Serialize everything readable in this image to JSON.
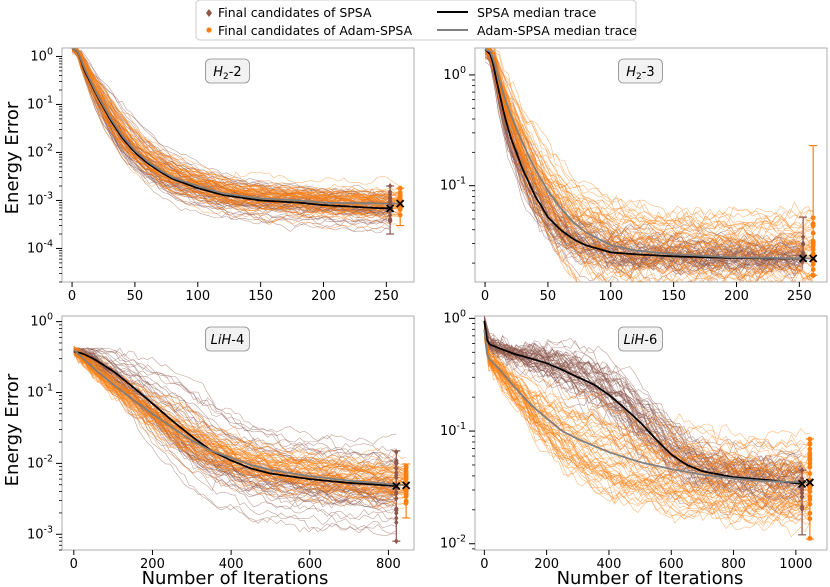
{
  "legend": {
    "entries": [
      {
        "label": "Final candidates of SPSA",
        "kind": "marker",
        "color": "#8c564b"
      },
      {
        "label": "Final candidates of Adam-SPSA",
        "kind": "marker",
        "color": "#ff7f0e"
      },
      {
        "label": "SPSA median trace",
        "kind": "line",
        "color": "#000000"
      },
      {
        "label": "Adam-SPSA median trace",
        "kind": "line",
        "color": "#7f7f7f"
      }
    ]
  },
  "ylabel": "Energy Error",
  "xlabel": "Number of Iterations",
  "colors": {
    "spsa": "#8c564b",
    "adam": "#ff7f0e",
    "spsa_median": "#000000",
    "adam_median": "#7f7f7f"
  },
  "chart_data": [
    {
      "type": "line",
      "title": "H2-2",
      "title_main": "H",
      "title_sub": "2",
      "title_suffix": "-2",
      "yscale": "log",
      "xlim": [
        -8,
        272
      ],
      "ylim": [
        2e-05,
        1.5
      ],
      "xticks": [
        0,
        50,
        100,
        150,
        200,
        250
      ],
      "xtick_labels": [
        "0",
        "50",
        "100",
        "150",
        "200",
        "250"
      ],
      "yticks": [
        0.0001,
        0.001,
        0.01,
        0.1,
        1
      ],
      "ytick_labels": [
        "10^-4",
        "10^-3",
        "10^-2",
        "10^-1",
        "10^0"
      ],
      "series": [
        {
          "name": "SPSA median trace",
          "x": [
            0,
            5,
            10,
            20,
            30,
            40,
            50,
            60,
            70,
            80,
            100,
            120,
            150,
            180,
            200,
            220,
            240,
            255
          ],
          "values": [
            1.5,
            1.2,
            0.5,
            0.15,
            0.05,
            0.02,
            0.01,
            0.006,
            0.004,
            0.0028,
            0.0018,
            0.0013,
            0.001,
            0.0009,
            0.0008,
            0.00075,
            0.0007,
            0.00068
          ]
        },
        {
          "name": "Adam-SPSA median trace",
          "x": [
            0,
            5,
            10,
            20,
            30,
            40,
            50,
            60,
            70,
            80,
            100,
            120,
            150,
            180,
            200,
            220,
            240,
            260
          ],
          "values": [
            1.5,
            1.2,
            0.55,
            0.16,
            0.055,
            0.022,
            0.011,
            0.0065,
            0.0043,
            0.003,
            0.002,
            0.0014,
            0.0011,
            0.001,
            0.0009,
            0.00088,
            0.00087,
            0.00086
          ]
        }
      ],
      "final_candidates": {
        "spsa": {
          "x": 253,
          "min": 0.0002,
          "max": 0.002,
          "median": 0.00068
        },
        "adam": {
          "x": 261,
          "min": 0.0003,
          "max": 0.0018,
          "median": 0.00086
        }
      }
    },
    {
      "type": "line",
      "title": "H2-3",
      "title_main": "H",
      "title_sub": "2",
      "title_suffix": "-3",
      "yscale": "log",
      "xlim": [
        -8,
        272
      ],
      "ylim": [
        0.0135,
        1.75
      ],
      "xticks": [
        0,
        50,
        100,
        150,
        200,
        250
      ],
      "xtick_labels": [
        "0",
        "50",
        "100",
        "150",
        "200",
        "250"
      ],
      "yticks": [
        0.1,
        1
      ],
      "ytick_labels": [
        "10^-1",
        "10^0"
      ],
      "series": [
        {
          "name": "SPSA median trace",
          "x": [
            0,
            5,
            10,
            15,
            20,
            30,
            40,
            50,
            60,
            70,
            80,
            100,
            120,
            150,
            200,
            250
          ],
          "values": [
            1.7,
            1.5,
            0.8,
            0.45,
            0.28,
            0.14,
            0.08,
            0.052,
            0.04,
            0.033,
            0.029,
            0.025,
            0.024,
            0.023,
            0.0222,
            0.022
          ]
        },
        {
          "name": "Adam-SPSA median trace",
          "x": [
            0,
            5,
            10,
            15,
            20,
            30,
            40,
            50,
            60,
            70,
            80,
            100,
            120,
            150,
            200,
            260
          ],
          "values": [
            1.7,
            1.6,
            1.0,
            0.65,
            0.45,
            0.24,
            0.14,
            0.09,
            0.063,
            0.047,
            0.038,
            0.029,
            0.026,
            0.024,
            0.0225,
            0.022
          ]
        }
      ],
      "final_candidates": {
        "spsa": {
          "x": 253,
          "min": 0.021,
          "max": 0.052,
          "median": 0.022
        },
        "adam": {
          "x": 261,
          "min": 0.0155,
          "max": 0.23,
          "median": 0.022
        }
      }
    },
    {
      "type": "line",
      "title": "LiH-4",
      "title_main": "LiH",
      "title_sub": "",
      "title_suffix": "-4",
      "yscale": "log",
      "xlim": [
        -30,
        865
      ],
      "ylim": [
        0.0006,
        1.2
      ],
      "xticks": [
        0,
        200,
        400,
        600,
        800
      ],
      "xtick_labels": [
        "0",
        "200",
        "400",
        "600",
        "800"
      ],
      "yticks": [
        0.001,
        0.01,
        0.1,
        1
      ],
      "ytick_labels": [
        "10^-3",
        "10^-2",
        "10^-1",
        "10^0"
      ],
      "series": [
        {
          "name": "SPSA median trace",
          "x": [
            0,
            25,
            50,
            100,
            150,
            200,
            250,
            300,
            350,
            400,
            450,
            500,
            600,
            700,
            820
          ],
          "values": [
            0.38,
            0.35,
            0.3,
            0.2,
            0.12,
            0.07,
            0.04,
            0.024,
            0.015,
            0.011,
            0.0085,
            0.0072,
            0.006,
            0.0053,
            0.0048
          ]
        },
        {
          "name": "Adam-SPSA median trace",
          "x": [
            0,
            25,
            50,
            100,
            150,
            200,
            250,
            300,
            350,
            400,
            450,
            500,
            600,
            700,
            845
          ],
          "values": [
            0.4,
            0.3,
            0.22,
            0.13,
            0.08,
            0.05,
            0.032,
            0.021,
            0.015,
            0.012,
            0.0095,
            0.0081,
            0.0066,
            0.0057,
            0.0049
          ]
        }
      ],
      "final_candidates": {
        "spsa": {
          "x": 820,
          "min": 0.0008,
          "max": 0.015,
          "median": 0.0048
        },
        "adam": {
          "x": 845,
          "min": 0.0017,
          "max": 0.0098,
          "median": 0.0049
        }
      }
    },
    {
      "type": "line",
      "title": "LiH-6",
      "title_main": "LiH",
      "title_sub": "",
      "title_suffix": "-6",
      "yscale": "log",
      "xlim": [
        -30,
        1100
      ],
      "ylim": [
        0.0088,
        1.05
      ],
      "xticks": [
        0,
        200,
        400,
        600,
        800,
        1000
      ],
      "xtick_labels": [
        "0",
        "200",
        "400",
        "600",
        "800",
        "1000"
      ],
      "yticks": [
        0.01,
        0.1,
        1
      ],
      "ytick_labels": [
        "10^-2",
        "10^-1",
        "10^0"
      ],
      "series": [
        {
          "name": "SPSA median trace",
          "x": [
            0,
            10,
            50,
            100,
            150,
            200,
            250,
            300,
            350,
            400,
            450,
            500,
            550,
            600,
            650,
            700,
            800,
            900,
            1020
          ],
          "values": [
            0.95,
            0.6,
            0.54,
            0.48,
            0.44,
            0.4,
            0.35,
            0.3,
            0.26,
            0.21,
            0.16,
            0.12,
            0.085,
            0.062,
            0.05,
            0.044,
            0.039,
            0.037,
            0.034
          ]
        },
        {
          "name": "Adam-SPSA median trace",
          "x": [
            0,
            10,
            50,
            100,
            150,
            200,
            250,
            300,
            400,
            500,
            600,
            700,
            800,
            900,
            1045
          ],
          "values": [
            0.8,
            0.45,
            0.35,
            0.24,
            0.17,
            0.13,
            0.1,
            0.085,
            0.065,
            0.053,
            0.046,
            0.041,
            0.038,
            0.036,
            0.035
          ]
        }
      ],
      "final_candidates": {
        "spsa": {
          "x": 1020,
          "min": 0.012,
          "max": 0.045,
          "median": 0.034
        },
        "adam": {
          "x": 1045,
          "min": 0.011,
          "max": 0.085,
          "median": 0.035
        }
      }
    }
  ]
}
